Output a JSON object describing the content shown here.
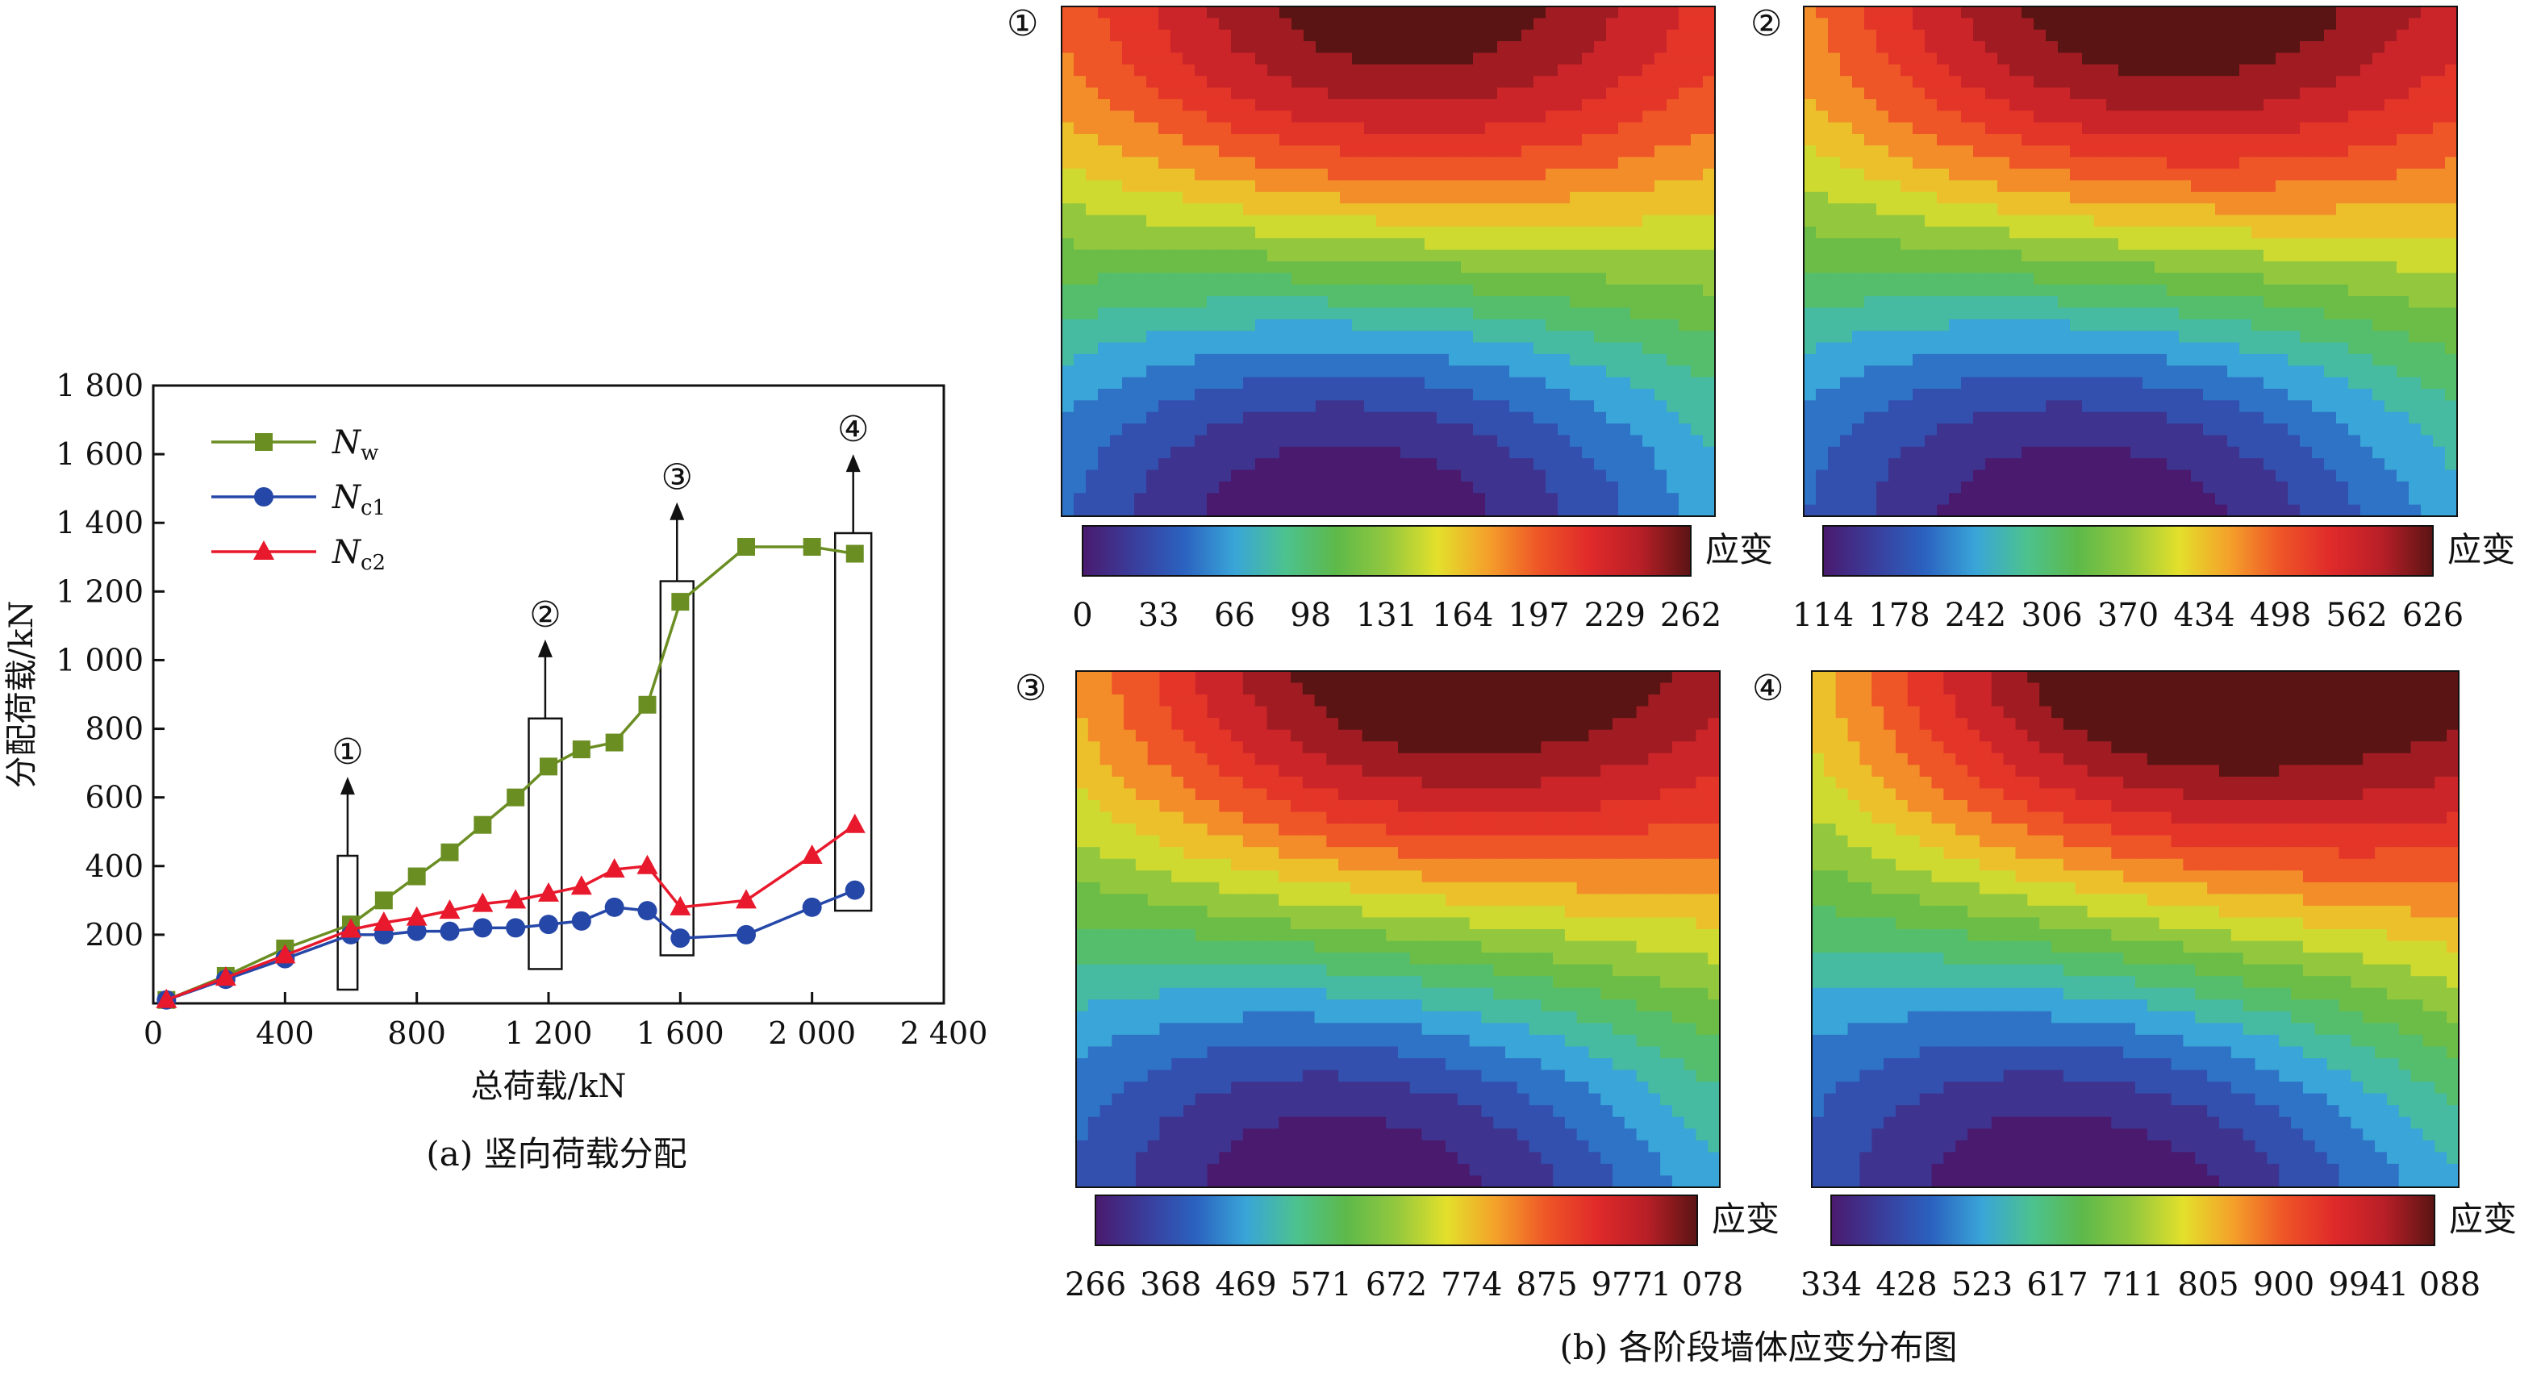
{
  "chart_data": [
    {
      "type": "line",
      "panel_caption": "(a) 竖向荷载分配",
      "xlabel": "总荷载/kN",
      "ylabel": "分配荷载/kN",
      "xlim": [
        0,
        2400
      ],
      "ylim": [
        0,
        1800
      ],
      "x_ticks": [
        "0",
        "400",
        "800",
        "1 200",
        "1 600",
        "2 000",
        "2 400"
      ],
      "y_ticks": [
        "200",
        "400",
        "600",
        "800",
        "1 000",
        "1 200",
        "1 400",
        "1 600",
        "1 800"
      ],
      "grid": false,
      "legend_position": "top-left",
      "series": [
        {
          "name": "Nw",
          "name_main": "N",
          "name_sub": "w",
          "color": "#6b8e23",
          "marker": "square",
          "x": [
            40,
            220,
            400,
            600,
            700,
            800,
            900,
            1000,
            1100,
            1200,
            1300,
            1400,
            1500,
            1600,
            1800,
            2000,
            2130
          ],
          "y": [
            10,
            80,
            160,
            230,
            300,
            370,
            440,
            520,
            600,
            690,
            740,
            760,
            870,
            1170,
            1330,
            1330,
            1310
          ]
        },
        {
          "name": "Nc1",
          "name_main": "N",
          "name_sub": "c1",
          "color": "#2547a8",
          "marker": "circle",
          "x": [
            40,
            220,
            400,
            600,
            700,
            800,
            900,
            1000,
            1100,
            1200,
            1300,
            1400,
            1500,
            1600,
            1800,
            2000,
            2130
          ],
          "y": [
            10,
            70,
            130,
            200,
            200,
            210,
            210,
            220,
            220,
            230,
            240,
            280,
            270,
            190,
            200,
            280,
            330
          ]
        },
        {
          "name": "Nc2",
          "name_main": "N",
          "name_sub": "c2",
          "color": "#e8192c",
          "marker": "triangle",
          "x": [
            40,
            220,
            400,
            600,
            700,
            800,
            900,
            1000,
            1100,
            1200,
            1300,
            1400,
            1500,
            1600,
            1800,
            2000,
            2130
          ],
          "y": [
            10,
            75,
            140,
            215,
            235,
            250,
            270,
            290,
            300,
            320,
            340,
            390,
            400,
            280,
            300,
            430,
            520
          ]
        }
      ],
      "annotations": [
        {
          "label": "①",
          "x_range": [
            560,
            620
          ],
          "y_range": [
            40,
            430
          ],
          "arrow_top": 660
        },
        {
          "label": "②",
          "x_range": [
            1140,
            1240
          ],
          "y_range": [
            100,
            830
          ],
          "arrow_top": 1060
        },
        {
          "label": "③",
          "x_range": [
            1540,
            1640
          ],
          "y_range": [
            140,
            1230
          ],
          "arrow_top": 1460
        },
        {
          "label": "④",
          "x_range": [
            2070,
            2180
          ],
          "y_range": [
            270,
            1370
          ],
          "arrow_top": 1600
        }
      ]
    },
    {
      "type": "heatmap",
      "panel_caption": "(b) 各阶段墙体应变分布图",
      "colorbar_label": "应变",
      "colorscale": [
        "#4a1a6e",
        "#3a3d9b",
        "#2b62c0",
        "#39a5d8",
        "#4cc28f",
        "#5db94a",
        "#93c83e",
        "#e3e02b",
        "#f4a02a",
        "#ee5527",
        "#e02a2a",
        "#b81f27",
        "#5a1414"
      ],
      "plots": [
        {
          "label": "①",
          "ticks": [
            "0",
            "33",
            "66",
            "98",
            "131",
            "164",
            "197",
            "229",
            "262"
          ]
        },
        {
          "label": "②",
          "ticks": [
            "114",
            "178",
            "242",
            "306",
            "370",
            "434",
            "498",
            "562",
            "626"
          ]
        },
        {
          "label": "③",
          "ticks": [
            "266",
            "368",
            "469",
            "571",
            "672",
            "774",
            "875",
            "977",
            "1 078"
          ]
        },
        {
          "label": "④",
          "ticks": [
            "334",
            "428",
            "523",
            "617",
            "711",
            "805",
            "900",
            "994",
            "1 088"
          ]
        }
      ]
    }
  ]
}
